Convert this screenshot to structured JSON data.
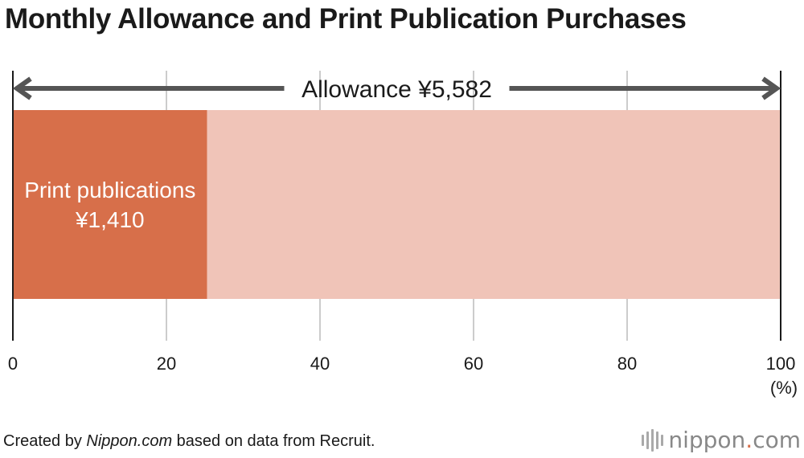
{
  "title": "Monthly Allowance and Print Publication Purchases",
  "chart_data": {
    "type": "bar",
    "orientation": "horizontal-stacked",
    "title": "Monthly Allowance and Print Publication Purchases",
    "unit_label": "(%)",
    "xlim": [
      0,
      100
    ],
    "x_ticks": [
      "0",
      "20",
      "40",
      "60",
      "80",
      "100"
    ],
    "x_tick_values": [
      0,
      20,
      40,
      60,
      80,
      100
    ],
    "grid": true,
    "total": {
      "label": "Allowance ¥5,582",
      "value_yen": 5582,
      "percent": 100
    },
    "segments": [
      {
        "name": "Print publications",
        "value_label": "¥1,410",
        "value_yen": 1410,
        "percent": 25.3,
        "color": "#d76f4a"
      },
      {
        "name": "",
        "value_yen": 4172,
        "percent": 74.7,
        "color": "#f0c4b8"
      }
    ],
    "colors": {
      "grid": "#cccccc",
      "axis": "#1a1a1a",
      "arrow": "#555555"
    }
  },
  "footer": {
    "source_prefix": "Created by ",
    "source_brand": "Nippon.com",
    "source_suffix": " based on data from Recruit.",
    "logo_main": "nippon",
    "logo_dot": ".",
    "logo_tld": "com"
  }
}
